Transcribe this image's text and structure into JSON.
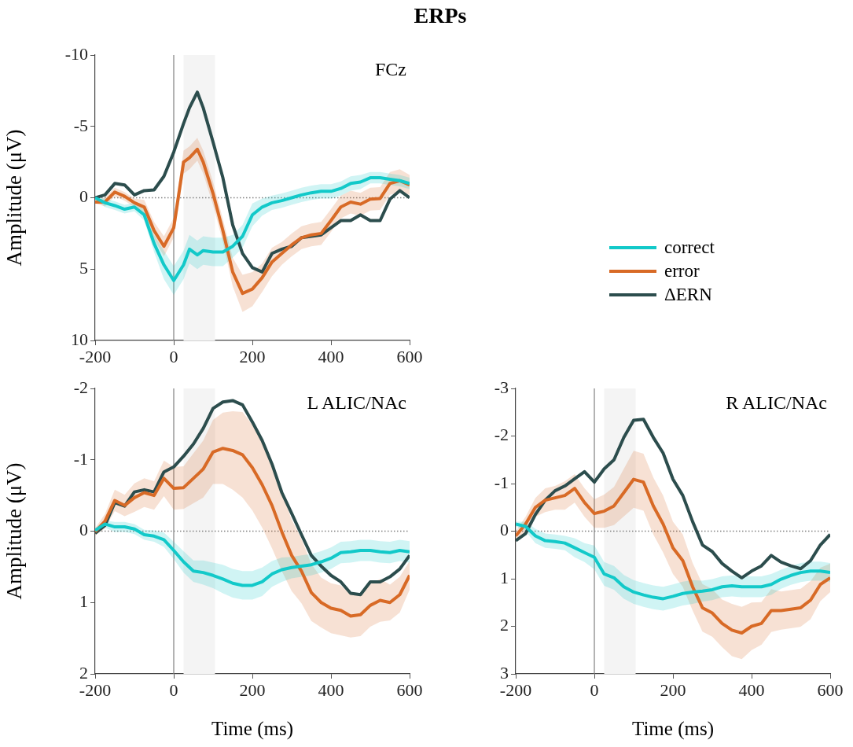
{
  "chart_data": [
    {
      "type": "line",
      "title": "ERPs",
      "ylabel": "Amplitude (μV)",
      "annotations": [
        "FCz"
      ],
      "legend": "right",
      "grid": false,
      "marker": "none",
      "line_style": "solid",
      "x": [
        -200,
        -175,
        -150,
        -125,
        -100,
        -75,
        -50,
        -25,
        0,
        25,
        40,
        60,
        75,
        100,
        125,
        150,
        175,
        200,
        225,
        250,
        275,
        300,
        325,
        350,
        375,
        400,
        425,
        450,
        475,
        500,
        525,
        550,
        575,
        600
      ],
      "xlim": [
        -200,
        600
      ],
      "xticks": [
        -200,
        0,
        200,
        400,
        600
      ],
      "ylim": [
        10,
        -10
      ],
      "yticks": [
        10,
        5,
        0,
        -5,
        -10
      ],
      "ref_lines": [
        {
          "axis": "x",
          "value": 0,
          "color": "#808080",
          "line_style": "solid"
        },
        {
          "axis": "y",
          "value": 0,
          "color": "#808080",
          "line_style": "dotted"
        }
      ],
      "bands": [
        {
          "axis": "x",
          "from": 25,
          "to": 105,
          "color": "#f4f4f4"
        }
      ],
      "series": [
        {
          "name": "correct",
          "color": "#12c9c9",
          "values": [
            0,
            0.35,
            0.55,
            0.8,
            0.65,
            1.2,
            3.2,
            4.7,
            5.8,
            4.7,
            3.6,
            4.0,
            3.7,
            3.8,
            3.8,
            3.4,
            2.7,
            1.2,
            0.65,
            0.35,
            0.2,
            0,
            -0.2,
            -0.35,
            -0.45,
            -0.45,
            -0.65,
            -1.0,
            -1.1,
            -1.4,
            -1.4,
            -1.3,
            -1.2,
            -1.0
          ],
          "lower": [
            -0.1,
            0.05,
            0.25,
            0.5,
            0.35,
            0.8,
            2.6,
            3.7,
            4.8,
            3.7,
            2.6,
            3.0,
            2.7,
            2.8,
            2.8,
            2.6,
            1.9,
            0.4,
            0.05,
            -0.15,
            -0.3,
            -0.5,
            -0.7,
            -0.85,
            -0.95,
            -0.95,
            -1.15,
            -1.5,
            -1.6,
            -1.8,
            -1.8,
            -1.7,
            -1.6,
            -1.4
          ],
          "upper": [
            0.1,
            0.65,
            0.85,
            1.1,
            0.95,
            1.6,
            3.8,
            5.7,
            6.8,
            5.7,
            4.6,
            5.0,
            4.7,
            4.8,
            4.8,
            4.2,
            3.5,
            2.0,
            1.25,
            0.85,
            0.7,
            0.5,
            0.3,
            0.15,
            0.05,
            0.05,
            -0.15,
            -0.5,
            -0.6,
            -1.0,
            -1.0,
            -0.9,
            -0.8,
            -0.6
          ]
        },
        {
          "name": "error",
          "color": "#d86a26",
          "values": [
            0.3,
            0.3,
            -0.4,
            -0.1,
            0.35,
            0.65,
            2.3,
            3.4,
            2.1,
            -2.5,
            -2.8,
            -3.4,
            -2.5,
            -0.3,
            2.3,
            5.2,
            6.7,
            6.4,
            5.6,
            4.5,
            3.9,
            3.3,
            2.8,
            2.6,
            2.5,
            1.6,
            0.65,
            0.3,
            0.45,
            0.1,
            0.05,
            -1.0,
            -1.2,
            -0.9
          ],
          "lower": [
            0.2,
            0,
            -0.7,
            -0.4,
            0.05,
            0.15,
            1.7,
            2.7,
            1.4,
            -3.3,
            -3.6,
            -4.2,
            -3.3,
            -1.1,
            1.5,
            4.2,
            5.4,
            5.2,
            4.6,
            3.5,
            3.1,
            2.5,
            2.0,
            1.8,
            1.7,
            0.8,
            -0.15,
            -0.5,
            -0.35,
            -0.7,
            -0.75,
            -1.8,
            -2.0,
            -1.6
          ],
          "upper": [
            0.4,
            0.6,
            -0.1,
            0.2,
            0.65,
            1.15,
            2.9,
            4.1,
            2.8,
            -1.7,
            -2.0,
            -2.6,
            -1.7,
            0.5,
            3.1,
            6.2,
            8.0,
            7.6,
            6.6,
            5.5,
            4.7,
            4.1,
            3.6,
            3.4,
            3.3,
            2.4,
            1.45,
            1.1,
            1.25,
            0.9,
            0.85,
            -0.2,
            -0.4,
            -0.2
          ]
        },
        {
          "name": "ΔERN",
          "color": "#2c4d4d",
          "values": [
            0,
            -0.2,
            -1.0,
            -0.9,
            -0.2,
            -0.5,
            -0.55,
            -1.5,
            -3.2,
            -5.2,
            -6.3,
            -7.4,
            -6.3,
            -3.9,
            -1.4,
            1.9,
            3.9,
            4.9,
            5.2,
            3.9,
            3.6,
            3.4,
            2.8,
            2.7,
            2.6,
            2.1,
            1.6,
            1.6,
            1.2,
            1.6,
            1.6,
            0.1,
            -0.5,
            0
          ]
        }
      ]
    },
    {
      "type": "line",
      "xlabel": "Time (ms)",
      "ylabel": "Amplitude (μV)",
      "annotations": [
        "L ALIC/NAc"
      ],
      "grid": false,
      "marker": "none",
      "line_style": "solid",
      "x": [
        -200,
        -175,
        -150,
        -125,
        -100,
        -75,
        -50,
        -25,
        0,
        25,
        50,
        75,
        100,
        125,
        150,
        175,
        200,
        225,
        250,
        275,
        300,
        325,
        350,
        375,
        400,
        425,
        450,
        475,
        500,
        525,
        550,
        575,
        600
      ],
      "xlim": [
        -200,
        600
      ],
      "xticks": [
        -200,
        0,
        200,
        400,
        600
      ],
      "ylim": [
        2,
        -2
      ],
      "yticks": [
        2,
        1,
        0,
        -1,
        -2
      ],
      "ref_lines": [
        {
          "axis": "x",
          "value": 0,
          "color": "#808080",
          "line_style": "solid"
        },
        {
          "axis": "y",
          "value": 0,
          "color": "#808080",
          "line_style": "dotted"
        }
      ],
      "bands": [
        {
          "axis": "x",
          "from": 25,
          "to": 105,
          "color": "#f4f4f4"
        }
      ],
      "series": [
        {
          "color": "#12c9c9",
          "values": [
            -0.01,
            -0.1,
            -0.06,
            -0.06,
            -0.03,
            0.05,
            0.07,
            0.12,
            0.27,
            0.43,
            0.56,
            0.58,
            0.62,
            0.67,
            0.73,
            0.76,
            0.76,
            0.71,
            0.6,
            0.54,
            0.51,
            0.49,
            0.47,
            0.43,
            0.38,
            0.3,
            0.29,
            0.27,
            0.27,
            0.29,
            0.3,
            0.27,
            0.29
          ],
          "lower": [
            -0.04,
            -0.15,
            -0.13,
            -0.13,
            -0.1,
            -0.02,
            -0.01,
            0.02,
            0.15,
            0.28,
            0.41,
            0.41,
            0.44,
            0.47,
            0.53,
            0.56,
            0.56,
            0.51,
            0.42,
            0.37,
            0.36,
            0.34,
            0.32,
            0.28,
            0.23,
            0.15,
            0.14,
            0.12,
            0.12,
            0.14,
            0.15,
            0.12,
            0.14
          ],
          "upper": [
            0.02,
            -0.05,
            0.01,
            0.01,
            0.04,
            0.12,
            0.15,
            0.22,
            0.39,
            0.58,
            0.71,
            0.75,
            0.8,
            0.87,
            0.93,
            0.96,
            0.96,
            0.91,
            0.78,
            0.71,
            0.66,
            0.64,
            0.62,
            0.58,
            0.53,
            0.45,
            0.44,
            0.42,
            0.42,
            0.44,
            0.45,
            0.42,
            0.44
          ]
        },
        {
          "color": "#d86a26",
          "values": [
            0.01,
            -0.14,
            -0.43,
            -0.36,
            -0.47,
            -0.54,
            -0.5,
            -0.74,
            -0.6,
            -0.61,
            -0.74,
            -0.87,
            -1.11,
            -1.16,
            -1.13,
            -1.07,
            -0.89,
            -0.65,
            -0.36,
            0.01,
            0.34,
            0.56,
            0.86,
            1.0,
            1.08,
            1.11,
            1.19,
            1.17,
            1.04,
            0.97,
            1.0,
            0.89,
            0.62
          ],
          "lower": [
            -0.04,
            -0.24,
            -0.58,
            -0.51,
            -0.67,
            -0.74,
            -0.7,
            -0.99,
            -0.9,
            -0.91,
            -1.09,
            -1.27,
            -1.56,
            -1.66,
            -1.68,
            -1.67,
            -1.49,
            -1.25,
            -0.96,
            -0.54,
            -0.16,
            0.11,
            0.46,
            0.65,
            0.73,
            0.76,
            0.89,
            0.87,
            0.74,
            0.67,
            0.75,
            0.64,
            0.42
          ],
          "upper": [
            0.06,
            -0.04,
            -0.28,
            -0.21,
            -0.27,
            -0.34,
            -0.3,
            -0.49,
            -0.3,
            -0.31,
            -0.39,
            -0.47,
            -0.66,
            -0.66,
            -0.58,
            -0.47,
            -0.29,
            -0.05,
            0.24,
            0.56,
            0.84,
            1.01,
            1.26,
            1.35,
            1.43,
            1.46,
            1.49,
            1.47,
            1.34,
            1.27,
            1.25,
            1.14,
            0.82
          ]
        },
        {
          "color": "#2c4d4d",
          "values": [
            0.03,
            -0.08,
            -0.4,
            -0.35,
            -0.55,
            -0.58,
            -0.55,
            -0.83,
            -0.9,
            -1.05,
            -1.22,
            -1.44,
            -1.72,
            -1.81,
            -1.83,
            -1.77,
            -1.53,
            -1.27,
            -0.94,
            -0.54,
            -0.25,
            0.05,
            0.34,
            0.49,
            0.62,
            0.71,
            0.87,
            0.89,
            0.71,
            0.71,
            0.64,
            0.53,
            0.34
          ]
        }
      ]
    },
    {
      "type": "line",
      "xlabel": "Time (ms)",
      "annotations": [
        "R ALIC/NAc"
      ],
      "grid": false,
      "marker": "none",
      "line_style": "solid",
      "x": [
        -200,
        -175,
        -150,
        -125,
        -100,
        -75,
        -50,
        -25,
        0,
        25,
        50,
        75,
        100,
        125,
        150,
        175,
        200,
        225,
        250,
        275,
        300,
        325,
        350,
        375,
        400,
        425,
        450,
        475,
        500,
        525,
        550,
        575,
        600
      ],
      "xlim": [
        -200,
        600
      ],
      "xticks": [
        -200,
        0,
        200,
        400,
        600
      ],
      "ylim": [
        3,
        -3
      ],
      "yticks": [
        3,
        2,
        1,
        0,
        -1,
        -2,
        -3
      ],
      "ref_lines": [
        {
          "axis": "x",
          "value": 0,
          "color": "#808080",
          "line_style": "solid"
        },
        {
          "axis": "y",
          "value": 0,
          "color": "#808080",
          "line_style": "dotted"
        }
      ],
      "bands": [
        {
          "axis": "x",
          "from": 25,
          "to": 105,
          "color": "#f4f4f4"
        }
      ],
      "series": [
        {
          "color": "#12c9c9",
          "values": [
            -0.15,
            -0.1,
            0.1,
            0.2,
            0.22,
            0.25,
            0.35,
            0.45,
            0.55,
            0.9,
            0.98,
            1.17,
            1.28,
            1.34,
            1.39,
            1.42,
            1.37,
            1.31,
            1.28,
            1.26,
            1.23,
            1.17,
            1.15,
            1.17,
            1.17,
            1.17,
            1.12,
            1.01,
            0.93,
            0.87,
            0.84,
            0.84,
            0.87
          ],
          "lower": [
            -0.2,
            -0.2,
            -0.05,
            0.05,
            0.07,
            0.1,
            0.15,
            0.25,
            0.3,
            0.65,
            0.73,
            0.92,
            1.03,
            1.09,
            1.14,
            1.17,
            1.12,
            1.06,
            1.03,
            1.04,
            1.01,
            0.95,
            0.93,
            0.95,
            0.95,
            0.95,
            0.9,
            0.81,
            0.73,
            0.67,
            0.64,
            0.64,
            0.67
          ],
          "upper": [
            -0.1,
            0.0,
            0.25,
            0.35,
            0.37,
            0.4,
            0.55,
            0.65,
            0.8,
            1.15,
            1.23,
            1.42,
            1.53,
            1.59,
            1.64,
            1.67,
            1.62,
            1.56,
            1.53,
            1.48,
            1.45,
            1.39,
            1.37,
            1.39,
            1.39,
            1.39,
            1.34,
            1.21,
            1.13,
            1.07,
            1.04,
            1.04,
            1.07
          ]
        },
        {
          "color": "#d86a26",
          "values": [
            0.1,
            -0.15,
            -0.5,
            -0.65,
            -0.7,
            -0.75,
            -0.9,
            -0.6,
            -0.37,
            -0.42,
            -0.53,
            -0.81,
            -1.09,
            -1.03,
            -0.53,
            -0.15,
            0.35,
            0.62,
            1.17,
            1.61,
            1.72,
            1.94,
            2.08,
            2.14,
            2.0,
            1.94,
            1.67,
            1.67,
            1.64,
            1.61,
            1.45,
            1.12,
            0.98
          ],
          "lower": [
            0.0,
            -0.3,
            -0.7,
            -0.9,
            -0.95,
            -1.05,
            -1.2,
            -0.9,
            -0.67,
            -0.77,
            -0.93,
            -1.31,
            -1.69,
            -1.63,
            -1.13,
            -0.75,
            -0.2,
            0.07,
            0.67,
            1.11,
            1.22,
            1.44,
            1.53,
            1.59,
            1.5,
            1.49,
            1.22,
            1.27,
            1.24,
            1.21,
            1.05,
            0.77,
            0.68
          ],
          "upper": [
            0.2,
            0.0,
            -0.3,
            -0.4,
            -0.45,
            -0.45,
            -0.6,
            -0.3,
            -0.07,
            -0.07,
            -0.13,
            -0.31,
            -0.49,
            -0.43,
            0.07,
            0.45,
            0.9,
            1.17,
            1.67,
            2.11,
            2.22,
            2.44,
            2.63,
            2.69,
            2.5,
            2.39,
            2.12,
            2.07,
            2.04,
            2.01,
            1.85,
            1.47,
            1.28
          ]
        },
        {
          "color": "#2c4d4d",
          "values": [
            0.2,
            0.05,
            -0.35,
            -0.65,
            -0.85,
            -0.95,
            -1.1,
            -1.25,
            -1.03,
            -1.31,
            -1.5,
            -1.97,
            -2.33,
            -2.35,
            -1.97,
            -1.64,
            -1.09,
            -0.75,
            -0.2,
            0.29,
            0.43,
            0.68,
            0.84,
            0.98,
            0.84,
            0.73,
            0.51,
            0.65,
            0.73,
            0.79,
            0.62,
            0.29,
            0.07
          ]
        }
      ]
    }
  ]
}
